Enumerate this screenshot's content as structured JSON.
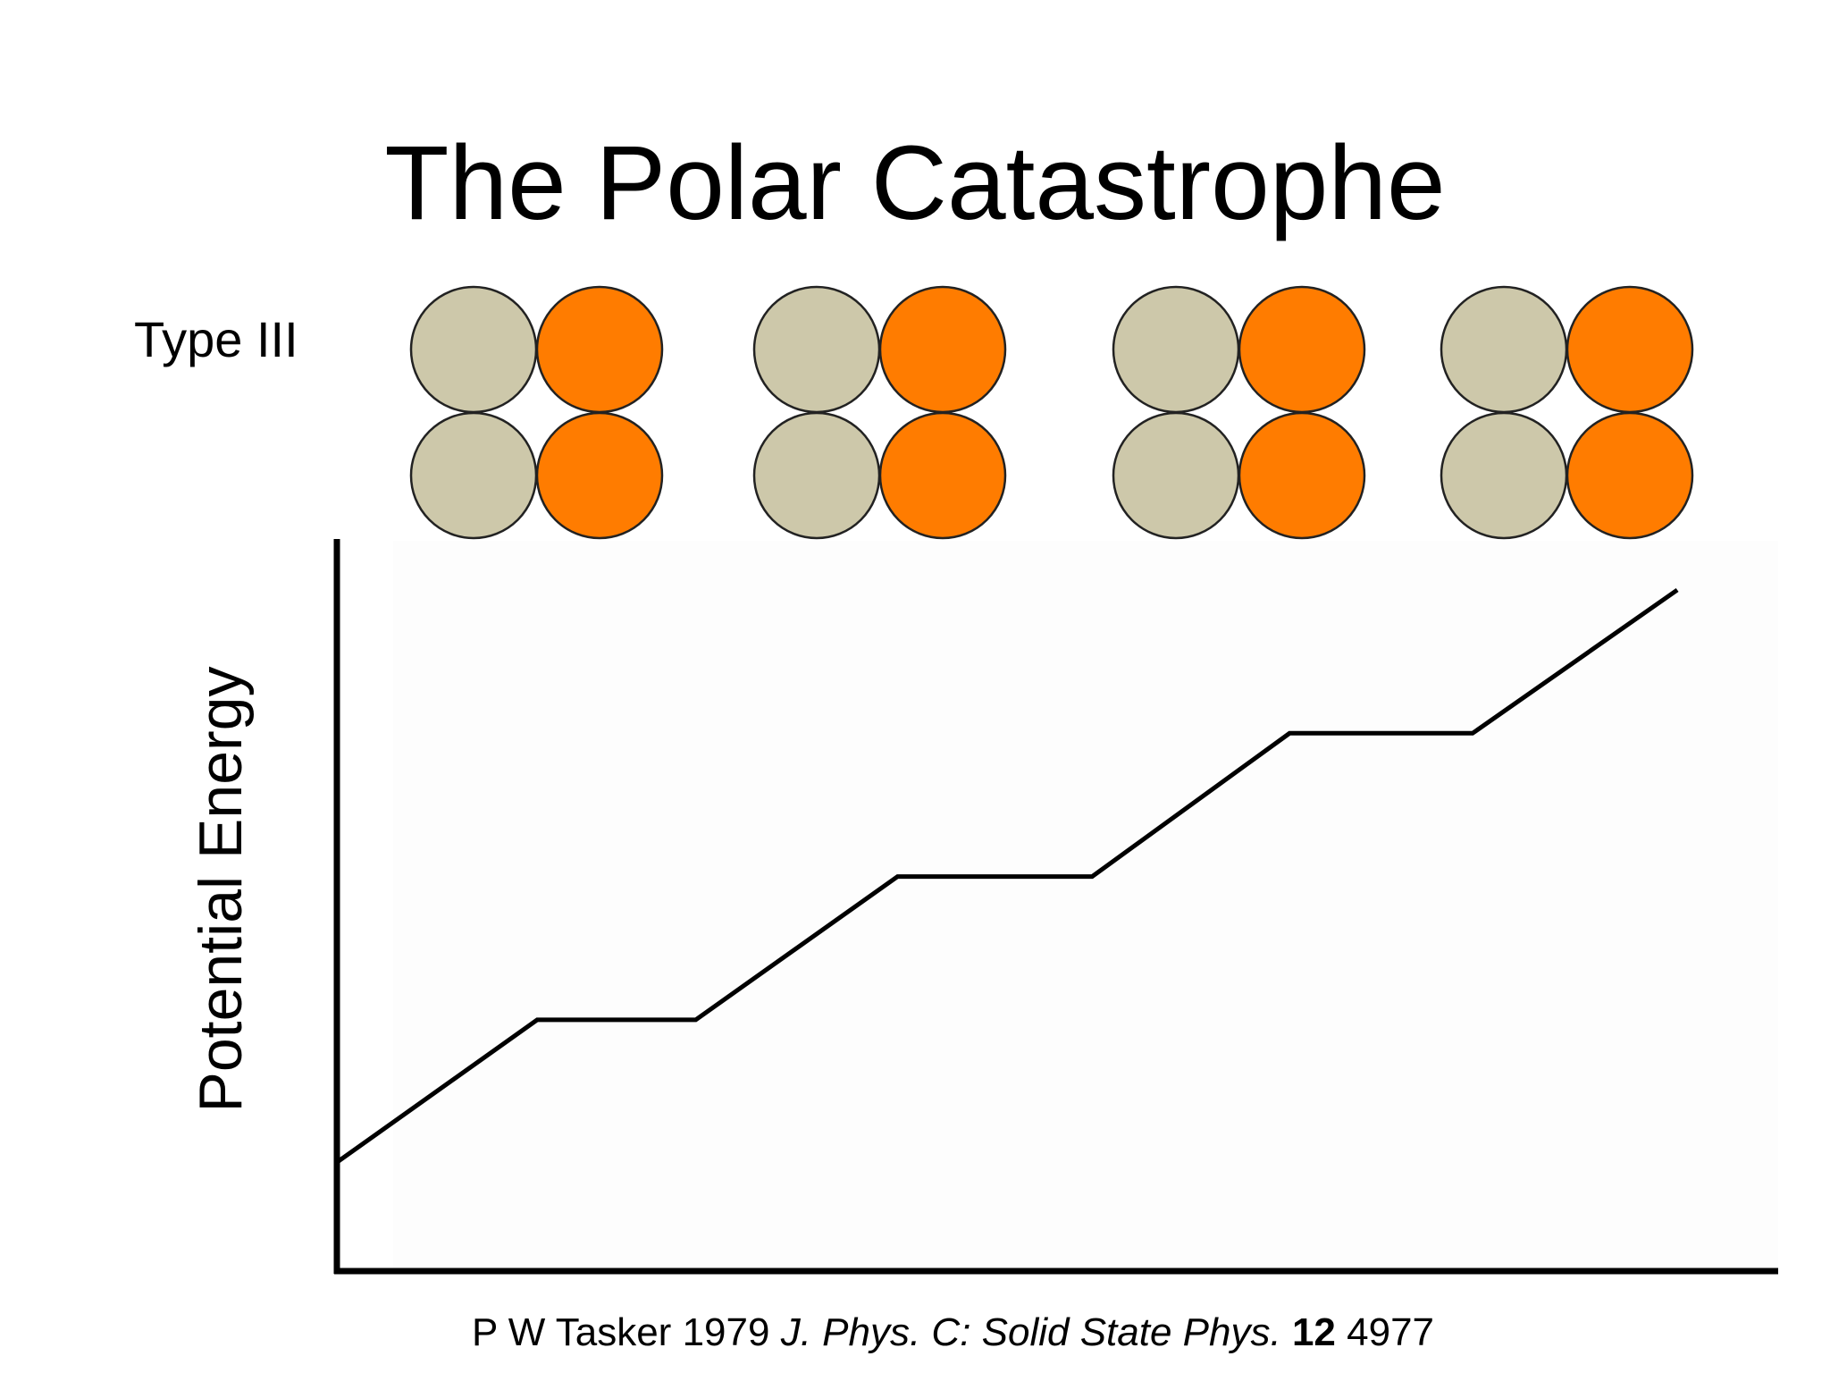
{
  "title": "The Polar Catastrophe",
  "type_label": "Type III",
  "ylabel": "Potential Energy",
  "citation": {
    "authors": "P W Tasker",
    "year": "1979",
    "journal": "J. Phys. C: Solid State Phys.",
    "volume": "12",
    "page": "4977"
  },
  "colors": {
    "cation": "#cdc8aa",
    "anion": "#ff7c00",
    "line": "#000000",
    "plot_bg": "#fdfdfd"
  },
  "atom_groups": [
    {
      "left_species": "cation",
      "right_species": "anion"
    },
    {
      "left_species": "cation",
      "right_species": "anion"
    },
    {
      "left_species": "cation",
      "right_species": "anion"
    },
    {
      "left_species": "cation",
      "right_species": "anion"
    }
  ],
  "chart_data": {
    "type": "line",
    "title": "",
    "xlabel": "",
    "ylabel": "Potential Energy",
    "xlim": [
      0,
      100
    ],
    "ylim": [
      0,
      100
    ],
    "grid": false,
    "series": [
      {
        "name": "potential",
        "x": [
          0,
          13.9,
          24.9,
          38.9,
          52.4,
          66.1,
          78.8,
          93.0
        ],
        "y": [
          14.8,
          34.2,
          34.2,
          53.7,
          53.7,
          73.2,
          73.2,
          92.7
        ]
      }
    ]
  }
}
